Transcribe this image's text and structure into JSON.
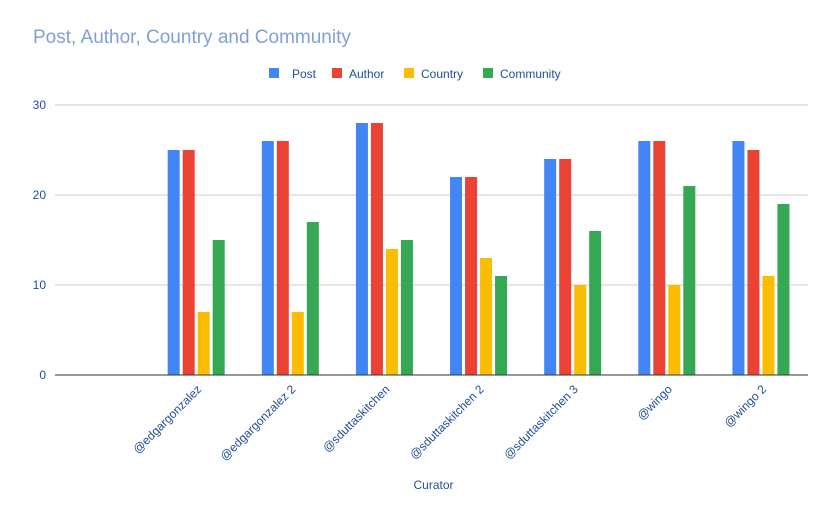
{
  "chart_data": {
    "type": "bar",
    "title": "Post, Author, Country and Community",
    "xlabel": "Curator",
    "ylabel": "",
    "ylim": [
      0,
      30
    ],
    "yticks": [
      0,
      10,
      20,
      30
    ],
    "grid": true,
    "legend_position": "top-center",
    "categories": [
      "",
      "@edgargonzalez",
      "@edgargonzalez 2",
      "@sduttaskitchen",
      "@sduttaskitchen 2",
      "@sduttaskitchen 3",
      "@wingo",
      "@wingo 2"
    ],
    "series": [
      {
        "name": "Post",
        "color": "#4285f4",
        "values": [
          null,
          25,
          26,
          28,
          22,
          24,
          26,
          26
        ]
      },
      {
        "name": "Author",
        "color": "#ea4335",
        "values": [
          null,
          25,
          26,
          28,
          22,
          24,
          26,
          25
        ]
      },
      {
        "name": "Country",
        "color": "#fbbc04",
        "values": [
          null,
          7,
          7,
          14,
          13,
          10,
          10,
          11
        ]
      },
      {
        "name": "Community",
        "color": "#34a853",
        "values": [
          null,
          15,
          17,
          15,
          11,
          16,
          21,
          19
        ]
      }
    ]
  }
}
